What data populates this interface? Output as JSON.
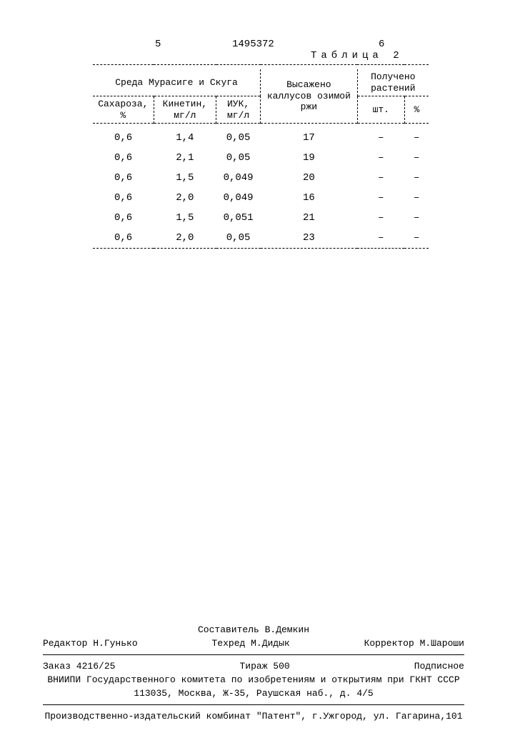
{
  "header": {
    "left_col_num": "5",
    "doc_number": "1495372",
    "right_col_num": "6"
  },
  "table": {
    "caption": "Таблица 2",
    "group_headers": {
      "medium": "Среда Мурасиге и Скуга",
      "planted": "Высажено каллусов озимой ржи",
      "obtained": "Получено растений"
    },
    "columns": {
      "sucrose": "Сахароза, %",
      "kinetin": "Кинетин, мг/л",
      "iuk": "ИУК, мг/л",
      "planted": "",
      "obtained_lit": "шт.",
      "obtained_pct": "%"
    },
    "rows": [
      {
        "sucrose": "0,6",
        "kinetin": "1,4",
        "iuk": "0,05",
        "planted": "17",
        "lit": "–",
        "pct": "–"
      },
      {
        "sucrose": "0,6",
        "kinetin": "2,1",
        "iuk": "0,05",
        "planted": "19",
        "lit": "–",
        "pct": "–"
      },
      {
        "sucrose": "0,6",
        "kinetin": "1,5",
        "iuk": "0,049",
        "planted": "20",
        "lit": "–",
        "pct": "–"
      },
      {
        "sucrose": "0,6",
        "kinetin": "2,0",
        "iuk": "0,049",
        "planted": "16",
        "lit": "–",
        "pct": "–"
      },
      {
        "sucrose": "0,6",
        "kinetin": "1,5",
        "iuk": "0,051",
        "planted": "21",
        "lit": "–",
        "pct": "–"
      },
      {
        "sucrose": "0,6",
        "kinetin": "2,0",
        "iuk": "0,05",
        "planted": "23",
        "lit": "–",
        "pct": "–"
      }
    ]
  },
  "footer": {
    "composer": "Составитель В.Демкин",
    "editor": "Редактор Н.Гунько",
    "techred": "Техред М.Дидык",
    "corrector": "Корректор М.Шароши",
    "order": "Заказ 4216/25",
    "tirage": "Тираж 500",
    "subscription": "Подписное",
    "org1": "ВНИИПИ Государственного комитета по изобретениям и открытиям при ГКНТ СССР",
    "org2": "113035, Москва, Ж-35, Раушская наб., д. 4/5",
    "printer": "Производственно-издательский комбинат \"Патент\", г.Ужгород, ул. Гагарина,101"
  }
}
